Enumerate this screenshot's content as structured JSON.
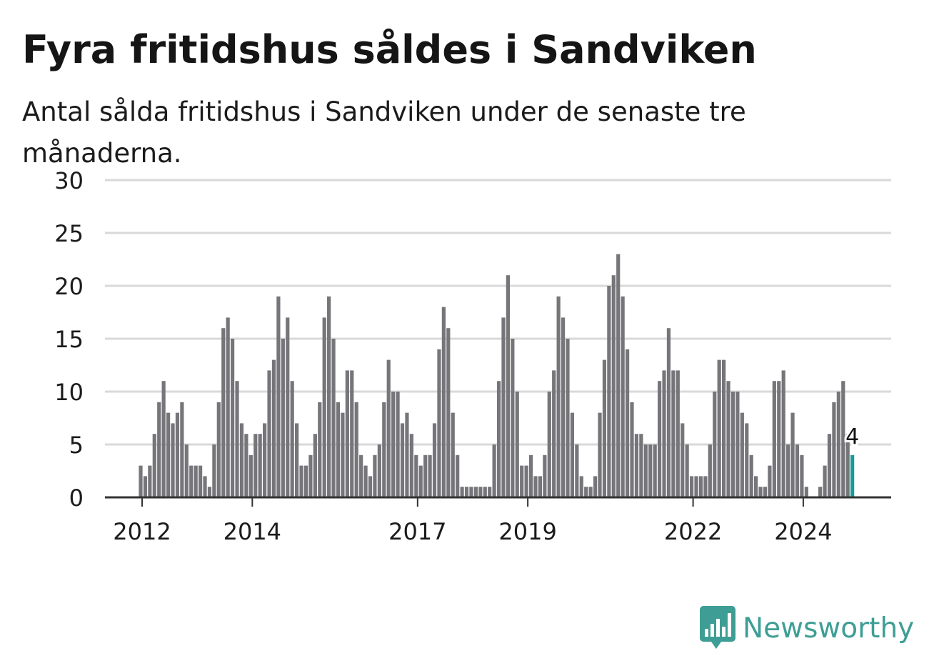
{
  "title": "Fyra fritidshus såldes i Sandviken",
  "subtitle": "Antal sålda fritidshus i Sandviken under de senaste tre månaderna.",
  "brand": {
    "name": "Newsworthy",
    "icon": "bar-chart-speech-bubble-icon",
    "color": "#3e9e95"
  },
  "colors": {
    "bar": "#76767a",
    "highlight": "#1a9a94",
    "grid": "#d9d9d9",
    "axis": "#333333",
    "text": "#1b1b1b"
  },
  "chart_data": {
    "type": "bar",
    "title": "Fyra fritidshus såldes i Sandviken",
    "subtitle": "Antal sålda fritidshus i Sandviken under de senaste tre månaderna.",
    "xlabel": "",
    "ylabel": "",
    "ylim": [
      0,
      30
    ],
    "yticks": [
      0,
      5,
      10,
      15,
      20,
      25,
      30
    ],
    "grid": true,
    "xtick_labels": [
      "2012",
      "2014",
      "2017",
      "2019",
      "2022",
      "2024"
    ],
    "start": "2012-01",
    "frequency": "monthly",
    "end": "2024-12",
    "highlight_label": "4",
    "values": [
      3,
      2,
      3,
      6,
      9,
      11,
      8,
      7,
      8,
      9,
      5,
      3,
      3,
      3,
      2,
      1,
      5,
      9,
      16,
      17,
      15,
      11,
      7,
      6,
      4,
      6,
      6,
      7,
      12,
      13,
      19,
      15,
      17,
      11,
      7,
      3,
      3,
      4,
      6,
      9,
      17,
      19,
      15,
      9,
      8,
      12,
      12,
      9,
      4,
      3,
      2,
      4,
      5,
      9,
      13,
      10,
      10,
      7,
      8,
      6,
      4,
      3,
      4,
      4,
      7,
      14,
      18,
      16,
      8,
      4,
      1,
      1,
      1,
      1,
      1,
      1,
      1,
      5,
      11,
      17,
      21,
      15,
      10,
      3,
      3,
      4,
      2,
      2,
      4,
      10,
      12,
      19,
      17,
      15,
      8,
      5,
      2,
      1,
      1,
      2,
      8,
      13,
      20,
      21,
      23,
      19,
      14,
      9,
      6,
      6,
      5,
      5,
      5,
      11,
      12,
      16,
      12,
      12,
      7,
      5,
      2,
      2,
      2,
      2,
      5,
      10,
      13,
      13,
      11,
      10,
      10,
      8,
      7,
      4,
      2,
      1,
      1,
      3,
      11,
      11,
      12,
      5,
      8,
      5,
      4,
      1,
      0,
      0,
      1,
      3,
      6,
      9,
      10,
      11,
      6,
      4
    ]
  }
}
